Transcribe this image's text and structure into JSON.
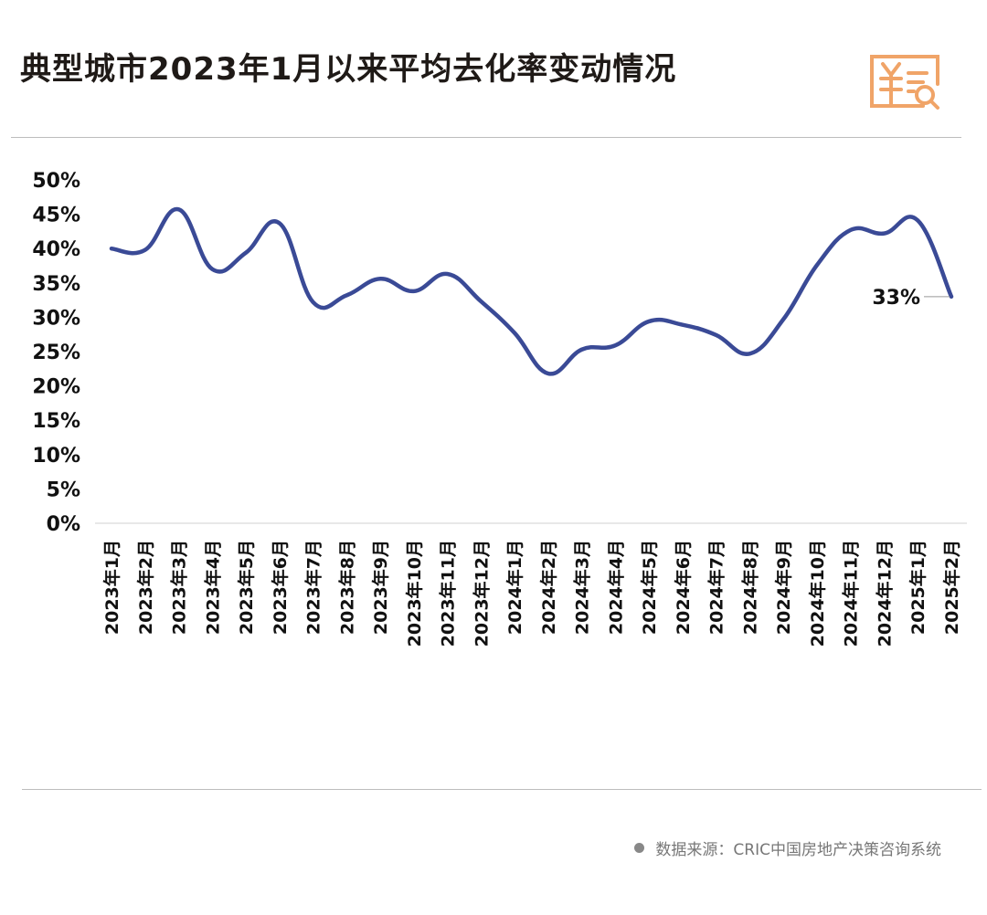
{
  "header": {
    "title": "典型城市2023年1月以来平均去化率变动情况",
    "icon": "receipt-search-icon"
  },
  "footer": {
    "source": "数据来源：CRIC中国房地产决策咨询系统"
  },
  "colors": {
    "line": "#3a4a96",
    "icon": "#f0a468",
    "text": "#1f1a17"
  },
  "chart_data": {
    "type": "line",
    "title": "典型城市2023年1月以来平均去化率变动情况",
    "xlabel": "",
    "ylabel": "",
    "ylim": [
      0,
      50
    ],
    "yticks": [
      "0%",
      "5%",
      "10%",
      "15%",
      "20%",
      "25%",
      "30%",
      "35%",
      "40%",
      "45%",
      "50%"
    ],
    "grid": false,
    "categories": [
      "2023年1月",
      "2023年2月",
      "2023年3月",
      "2023年4月",
      "2023年5月",
      "2023年6月",
      "2023年7月",
      "2023年8月",
      "2023年9月",
      "2023年10月",
      "2023年11月",
      "2023年12月",
      "2024年1月",
      "2024年2月",
      "2024年3月",
      "2024年4月",
      "2024年5月",
      "2024年6月",
      "2024年7月",
      "2024年8月",
      "2024年9月",
      "2024年10月",
      "2024年11月",
      "2024年12月",
      "2025年1月",
      "2025年2月"
    ],
    "series": [
      {
        "name": "平均去化率",
        "values": [
          40.0,
          39.8,
          45.7,
          37.0,
          39.4,
          43.7,
          32.2,
          33.2,
          35.6,
          33.8,
          36.3,
          32.3,
          27.7,
          21.8,
          25.3,
          25.9,
          29.4,
          28.9,
          27.4,
          24.7,
          29.7,
          37.6,
          42.7,
          42.2,
          44.1,
          33.0
        ]
      }
    ],
    "annotations": [
      {
        "category": "2025年2月",
        "text": "33%"
      }
    ]
  }
}
